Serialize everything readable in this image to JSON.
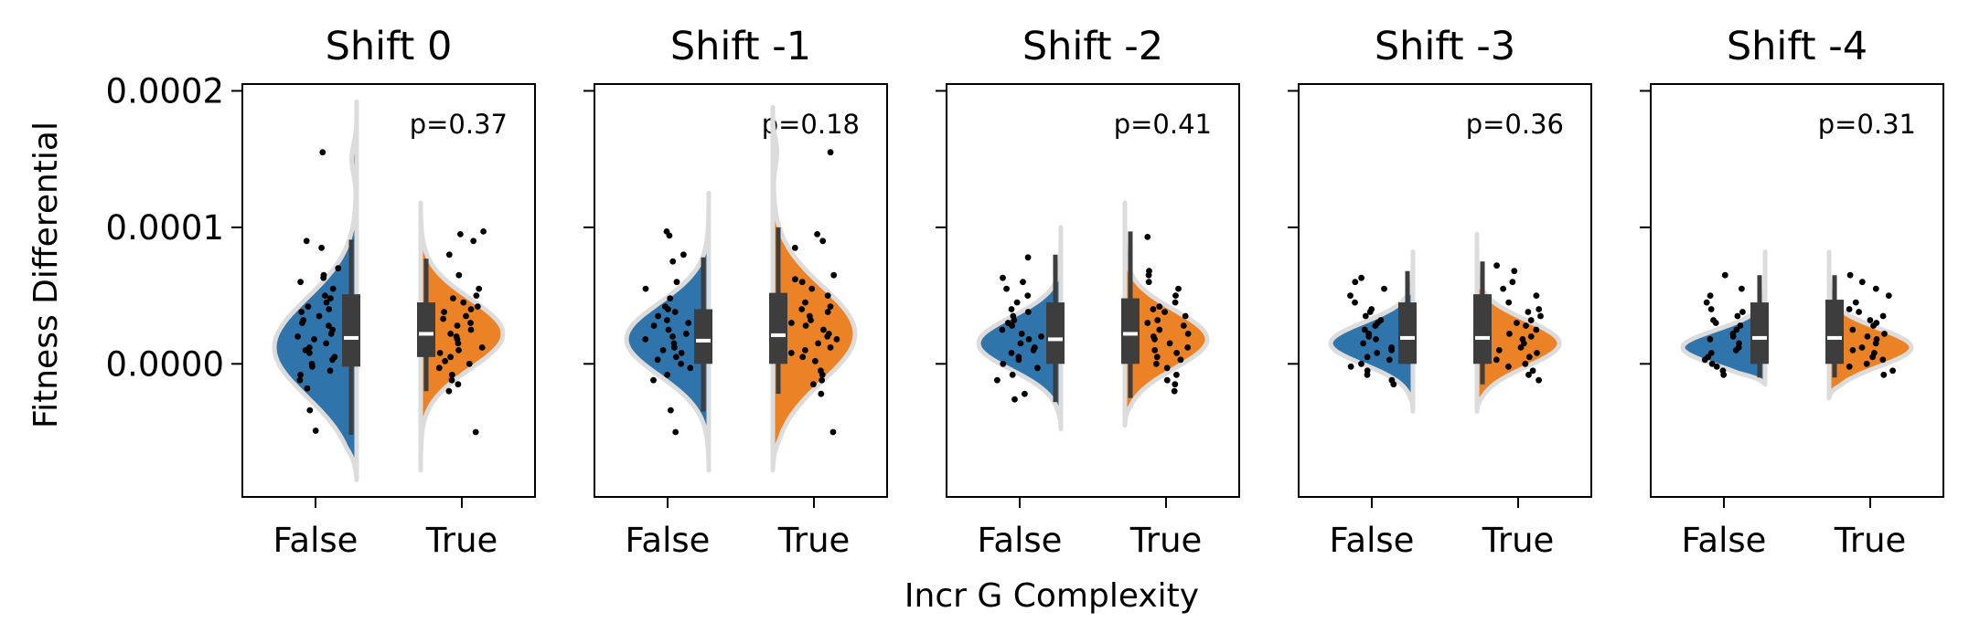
{
  "chart_data": {
    "type": "violin",
    "subtype": "split-violin with inner box and jittered points",
    "xlabel": "Incr G Complexity",
    "ylabel": "Fitness Differential",
    "y_ticks": [
      0.0,
      0.0001,
      0.0002
    ],
    "y_tick_labels": [
      "0.0000",
      "0.0001",
      "0.0002"
    ],
    "ylim": [
      -9.75e-05,
      0.000205
    ],
    "categories": [
      "False",
      "True"
    ],
    "colors": {
      "False": "#2f74ab",
      "True": "#eb8226",
      "outline": "#dcdcdc",
      "box": "#3d3d3d",
      "median": "#ffffff",
      "points": "#000000"
    },
    "panels": [
      {
        "title": "Shift 0",
        "p_value": "p=0.37",
        "groups": {
          "False": {
            "min": -5.2e-05,
            "q1": -2e-06,
            "median": 1.9e-05,
            "q3": 5.1e-05,
            "max": 9.1e-05,
            "kde_range": [
              -8.5e-05,
              0.000192
            ],
            "kde_peaks": [
              [
                1.2e-05,
                1.0
              ],
              [
                0.00015,
                0.06
              ]
            ],
            "points": [
              0.000155,
              9e-05,
              8.5e-05,
              7e-05,
              6.5e-05,
              6.3e-05,
              6e-05,
              5.5e-05,
              5e-05,
              4.8e-05,
              4.5e-05,
              4.2e-05,
              4e-05,
              3.8e-05,
              3.5e-05,
              3.2e-05,
              3e-05,
              2.8e-05,
              2.5e-05,
              2.2e-05,
              2e-05,
              1.8e-05,
              1.5e-05,
              1.2e-05,
              1e-05,
              8e-06,
              5e-06,
              3e-06,
              0.0,
              -2e-06,
              -5e-06,
              -8e-06,
              -1.2e-05,
              -1.8e-05,
              -3.4e-05,
              -4.9e-05
            ]
          },
          "True": {
            "min": -2e-05,
            "q1": 5e-06,
            "median": 2.2e-05,
            "q3": 4.5e-05,
            "max": 7.7e-05,
            "kde_range": [
              -7.8e-05,
              0.000118
            ],
            "kde_peaks": [
              [
                2.2e-05,
                1.0
              ]
            ],
            "points": [
              9.7e-05,
              9.5e-05,
              9e-05,
              8e-05,
              6.5e-05,
              5.5e-05,
              5e-05,
              4.8e-05,
              4.5e-05,
              4.2e-05,
              4e-05,
              3.8e-05,
              3.5e-05,
              3.3e-05,
              3e-05,
              2.8e-05,
              2.5e-05,
              2.2e-05,
              2e-05,
              1.8e-05,
              1.5e-05,
              1.2e-05,
              1e-05,
              8e-06,
              5e-06,
              2e-06,
              0.0,
              -3e-06,
              -8e-06,
              -1.2e-05,
              -1.5e-05,
              -2e-05,
              -5e-05
            ]
          }
        }
      },
      {
        "title": "Shift -1",
        "p_value": "p=0.18",
        "groups": {
          "False": {
            "min": -3.5e-05,
            "q1": 0.0,
            "median": 1.7e-05,
            "q3": 4e-05,
            "max": 7.8e-05,
            "kde_range": [
              -7.8e-05,
              0.000125
            ],
            "kde_peaks": [
              [
                1.8e-05,
                1.0
              ]
            ],
            "points": [
              9.7e-05,
              9.4e-05,
              8e-05,
              7.5e-05,
              6e-05,
              5.5e-05,
              4.8e-05,
              4.2e-05,
              4e-05,
              3.8e-05,
              3.5e-05,
              3.2e-05,
              3e-05,
              2.8e-05,
              2.5e-05,
              2.2e-05,
              2e-05,
              1.8e-05,
              1.5e-05,
              1.2e-05,
              1e-05,
              8e-06,
              5e-06,
              3e-06,
              0.0,
              -3e-06,
              -8e-06,
              -1.2e-05,
              -3.4e-05,
              -5e-05
            ]
          },
          "True": {
            "min": -2.2e-05,
            "q1": 0.0,
            "median": 2.1e-05,
            "q3": 5.2e-05,
            "max": 0.0001,
            "kde_range": [
              -7.8e-05,
              0.000188
            ],
            "kde_peaks": [
              [
                2.2e-05,
                1.0
              ],
              [
                0.000155,
                0.05
              ]
            ],
            "points": [
              0.000155,
              9.5e-05,
              9e-05,
              8.5e-05,
              6.5e-05,
              6.2e-05,
              6e-05,
              5.5e-05,
              5e-05,
              4.5e-05,
              4.2e-05,
              4e-05,
              3.8e-05,
              3.5e-05,
              3.2e-05,
              3e-05,
              2.8e-05,
              2.5e-05,
              2.2e-05,
              2e-05,
              1.8e-05,
              1.5e-05,
              1.2e-05,
              1e-05,
              8e-06,
              5e-06,
              2e-06,
              -5e-06,
              -8e-06,
              -1.2e-05,
              -1.5e-05,
              -2.2e-05,
              -5e-05
            ]
          }
        }
      },
      {
        "title": "Shift -2",
        "p_value": "p=0.41",
        "groups": {
          "False": {
            "min": -2.8e-05,
            "q1": 0.0,
            "median": 1.8e-05,
            "q3": 4.5e-05,
            "max": 8e-05,
            "kde_range": [
              -4.8e-05,
              0.0001
            ],
            "kde_peaks": [
              [
                1.5e-05,
                1.0
              ]
            ],
            "points": [
              7.8e-05,
              6.3e-05,
              6e-05,
              5.5e-05,
              5e-05,
              4.5e-05,
              4e-05,
              3.8e-05,
              3.5e-05,
              3.2e-05,
              3e-05,
              2.8e-05,
              2.5e-05,
              2.2e-05,
              2e-05,
              1.8e-05,
              1.5e-05,
              1.2e-05,
              1e-05,
              8e-06,
              5e-06,
              3e-06,
              0.0,
              -3e-06,
              -8e-06,
              -1.2e-05,
              -2.2e-05,
              -2.6e-05
            ]
          },
          "True": {
            "min": -2.5e-05,
            "q1": 0.0,
            "median": 2.2e-05,
            "q3": 4.8e-05,
            "max": 9.7e-05,
            "kde_range": [
              -4.5e-05,
              0.000118
            ],
            "kde_peaks": [
              [
                1.8e-05,
                1.0
              ]
            ],
            "points": [
              9.3e-05,
              6.8e-05,
              6.5e-05,
              6e-05,
              5.5e-05,
              5e-05,
              4.5e-05,
              4.2e-05,
              4e-05,
              3.8e-05,
              3.5e-05,
              3.2e-05,
              3e-05,
              2.8e-05,
              2.5e-05,
              2.2e-05,
              2e-05,
              1.8e-05,
              1.5e-05,
              1.2e-05,
              1e-05,
              8e-06,
              5e-06,
              3e-06,
              0.0,
              -3e-06,
              -8e-06,
              -1.2e-05,
              -1.5e-05,
              -2e-05
            ]
          }
        }
      },
      {
        "title": "Shift -3",
        "p_value": "p=0.36",
        "groups": {
          "False": {
            "min": 0.0,
            "q1": 0.0,
            "median": 1.9e-05,
            "q3": 4.5e-05,
            "max": 6.8e-05,
            "kde_range": [
              -3.5e-05,
              8.2e-05
            ],
            "kde_peaks": [
              [
                1.5e-05,
                1.0
              ]
            ],
            "points": [
              6.3e-05,
              6e-05,
              5.5e-05,
              5e-05,
              4.5e-05,
              4e-05,
              3.8e-05,
              3.5e-05,
              3.2e-05,
              3e-05,
              2.8e-05,
              2.5e-05,
              2.2e-05,
              2e-05,
              1.8e-05,
              1.5e-05,
              1.2e-05,
              1e-05,
              8e-06,
              5e-06,
              3e-06,
              0.0,
              -2e-06,
              -5e-06,
              -8e-06,
              -1.2e-05,
              -1.5e-05
            ]
          },
          "True": {
            "min": -1.5e-05,
            "q1": 0.0,
            "median": 1.9e-05,
            "q3": 5.1e-05,
            "max": 7.5e-05,
            "kde_range": [
              -3.5e-05,
              9.5e-05
            ],
            "kde_peaks": [
              [
                1.5e-05,
                1.0
              ]
            ],
            "points": [
              7.2e-05,
              6.8e-05,
              6e-05,
              5.5e-05,
              5e-05,
              4.5e-05,
              4e-05,
              3.8e-05,
              3.5e-05,
              3.2e-05,
              3e-05,
              2.8e-05,
              2.5e-05,
              2.2e-05,
              2e-05,
              1.8e-05,
              1.5e-05,
              1.2e-05,
              1e-05,
              8e-06,
              5e-06,
              3e-06,
              0.0,
              -2e-06,
              -5e-06,
              -8e-06,
              -1.2e-05
            ]
          }
        }
      },
      {
        "title": "Shift -4",
        "p_value": "p=0.31",
        "groups": {
          "False": {
            "min": -1e-05,
            "q1": 0.0,
            "median": 1.9e-05,
            "q3": 4.5e-05,
            "max": 6.5e-05,
            "kde_range": [
              -1.5e-05,
              8.2e-05
            ],
            "kde_peaks": [
              [
                1.2e-05,
                1.0
              ]
            ],
            "points": [
              6.5e-05,
              5.5e-05,
              5e-05,
              4.5e-05,
              4e-05,
              3.8e-05,
              3.5e-05,
              3.2e-05,
              3e-05,
              2.8e-05,
              2.5e-05,
              2.2e-05,
              2e-05,
              1.8e-05,
              1.5e-05,
              1.2e-05,
              1e-05,
              8e-06,
              5e-06,
              3e-06,
              0.0,
              -2e-06,
              -5e-06,
              -8e-06
            ]
          },
          "True": {
            "min": -1e-05,
            "q1": 0.0,
            "median": 1.9e-05,
            "q3": 4.7e-05,
            "max": 6.5e-05,
            "kde_range": [
              -2.5e-05,
              8.2e-05
            ],
            "kde_peaks": [
              [
                1.2e-05,
                1.0
              ]
            ],
            "points": [
              6.5e-05,
              6e-05,
              5.5e-05,
              5e-05,
              4.5e-05,
              4e-05,
              3.8e-05,
              3.5e-05,
              3.2e-05,
              3e-05,
              2.8e-05,
              2.5e-05,
              2.2e-05,
              2e-05,
              1.8e-05,
              1.5e-05,
              1.2e-05,
              1e-05,
              8e-06,
              5e-06,
              3e-06,
              0.0,
              -2e-06,
              -5e-06,
              -8e-06
            ]
          }
        }
      }
    ]
  }
}
